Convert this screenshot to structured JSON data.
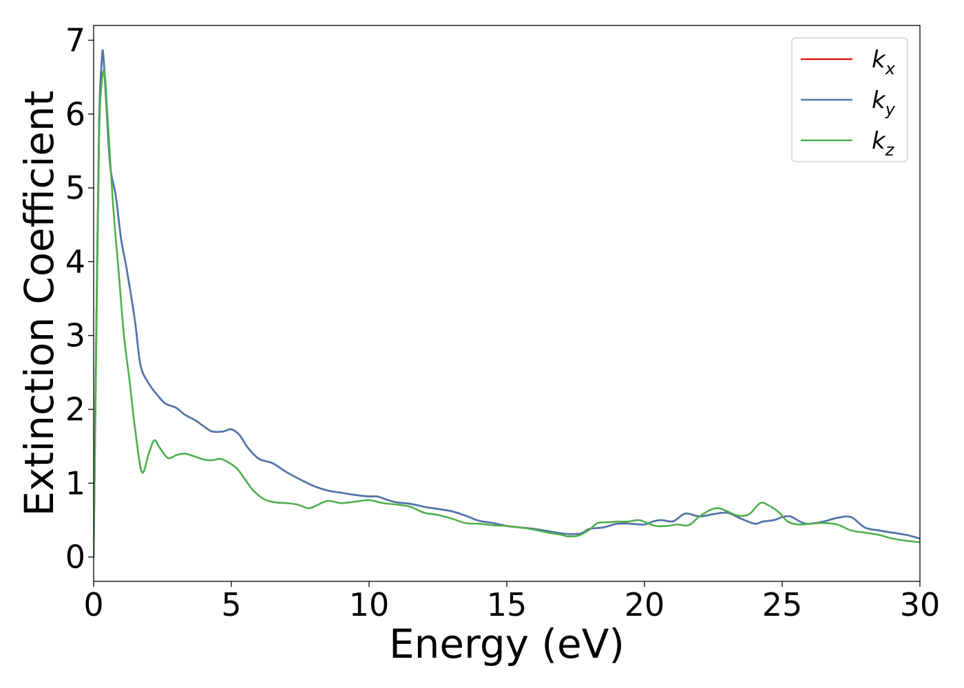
{
  "chart_data": {
    "type": "line",
    "xlabel": "Energy (eV)",
    "ylabel": "Extinction Coefficient",
    "xlim": [
      0,
      30
    ],
    "ylim": [
      -0.33,
      7.2
    ],
    "xticks": [
      "0",
      "5",
      "10",
      "15",
      "20",
      "25",
      "30"
    ],
    "yticks": [
      "0",
      "1",
      "2",
      "3",
      "4",
      "5",
      "6",
      "7"
    ],
    "grid": false,
    "legend": {
      "position": "top-right",
      "entries": [
        {
          "base": "k",
          "sub": "x"
        },
        {
          "base": "k",
          "sub": "y"
        },
        {
          "base": "k",
          "sub": "z"
        }
      ]
    },
    "series": [
      {
        "name": "k_x",
        "color": "#e41a1c",
        "x": [
          0,
          0.1,
          0.2,
          0.3,
          0.35,
          0.45,
          0.6,
          0.8,
          1.0,
          1.2,
          1.5,
          1.7,
          2.0,
          2.3,
          2.6,
          3.0,
          3.3,
          3.7,
          4.0,
          4.3,
          4.7,
          5.0,
          5.3,
          5.6,
          6.0,
          6.5,
          7.0,
          7.5,
          8.0,
          8.5,
          9.0,
          9.5,
          10.0,
          10.3,
          10.7,
          11.0,
          11.5,
          12.0,
          12.5,
          13.0,
          13.5,
          14.0,
          14.5,
          15.0,
          15.5,
          16.0,
          16.5,
          17.0,
          17.3,
          17.7,
          18.0,
          18.5,
          19.0,
          19.5,
          20.0,
          20.3,
          20.6,
          21.0,
          21.2,
          21.5,
          22.0,
          22.5,
          23.0,
          23.5,
          24.0,
          24.3,
          24.7,
          25.0,
          25.3,
          25.7,
          26.0,
          26.5,
          27.0,
          27.5,
          28.0,
          28.5,
          29.0,
          29.5,
          30.0
        ],
        "y": [
          0.0,
          3.2,
          5.9,
          6.75,
          6.8,
          6.2,
          5.3,
          4.9,
          4.3,
          3.9,
          3.2,
          2.6,
          2.35,
          2.2,
          2.08,
          2.02,
          1.93,
          1.85,
          1.77,
          1.7,
          1.7,
          1.73,
          1.65,
          1.48,
          1.33,
          1.27,
          1.15,
          1.05,
          0.96,
          0.9,
          0.87,
          0.84,
          0.82,
          0.82,
          0.77,
          0.74,
          0.72,
          0.68,
          0.65,
          0.62,
          0.56,
          0.49,
          0.46,
          0.42,
          0.4,
          0.38,
          0.35,
          0.32,
          0.31,
          0.32,
          0.38,
          0.4,
          0.45,
          0.45,
          0.44,
          0.48,
          0.5,
          0.48,
          0.52,
          0.59,
          0.55,
          0.58,
          0.6,
          0.52,
          0.45,
          0.48,
          0.5,
          0.54,
          0.55,
          0.47,
          0.45,
          0.48,
          0.53,
          0.54,
          0.4,
          0.36,
          0.33,
          0.3,
          0.25
        ]
      },
      {
        "name": "k_y",
        "color": "#4a78b0",
        "x": [
          0,
          0.1,
          0.2,
          0.3,
          0.35,
          0.45,
          0.6,
          0.8,
          1.0,
          1.2,
          1.5,
          1.7,
          2.0,
          2.3,
          2.6,
          3.0,
          3.3,
          3.7,
          4.0,
          4.3,
          4.7,
          5.0,
          5.3,
          5.6,
          6.0,
          6.5,
          7.0,
          7.5,
          8.0,
          8.5,
          9.0,
          9.5,
          10.0,
          10.3,
          10.7,
          11.0,
          11.5,
          12.0,
          12.5,
          13.0,
          13.5,
          14.0,
          14.5,
          15.0,
          15.5,
          16.0,
          16.5,
          17.0,
          17.3,
          17.7,
          18.0,
          18.5,
          19.0,
          19.5,
          20.0,
          20.3,
          20.6,
          21.0,
          21.2,
          21.5,
          22.0,
          22.5,
          23.0,
          23.5,
          24.0,
          24.3,
          24.7,
          25.0,
          25.3,
          25.7,
          26.0,
          26.5,
          27.0,
          27.5,
          28.0,
          28.5,
          29.0,
          29.5,
          30.0
        ],
        "y": [
          0.0,
          3.2,
          5.9,
          6.75,
          6.8,
          6.2,
          5.3,
          4.9,
          4.3,
          3.9,
          3.2,
          2.6,
          2.35,
          2.2,
          2.08,
          2.02,
          1.93,
          1.85,
          1.77,
          1.7,
          1.7,
          1.73,
          1.65,
          1.48,
          1.33,
          1.27,
          1.15,
          1.05,
          0.96,
          0.9,
          0.87,
          0.84,
          0.82,
          0.82,
          0.77,
          0.74,
          0.72,
          0.68,
          0.65,
          0.62,
          0.56,
          0.49,
          0.46,
          0.42,
          0.4,
          0.38,
          0.35,
          0.32,
          0.31,
          0.32,
          0.38,
          0.4,
          0.45,
          0.45,
          0.44,
          0.48,
          0.5,
          0.48,
          0.52,
          0.59,
          0.55,
          0.58,
          0.6,
          0.52,
          0.45,
          0.48,
          0.5,
          0.54,
          0.55,
          0.47,
          0.45,
          0.48,
          0.53,
          0.54,
          0.4,
          0.36,
          0.33,
          0.3,
          0.25
        ]
      },
      {
        "name": "k_z",
        "color": "#4daf4a",
        "x": [
          0,
          0.1,
          0.2,
          0.3,
          0.4,
          0.5,
          0.7,
          0.9,
          1.1,
          1.3,
          1.5,
          1.75,
          2.0,
          2.2,
          2.4,
          2.7,
          3.0,
          3.3,
          3.6,
          4.0,
          4.3,
          4.6,
          4.9,
          5.2,
          5.5,
          5.8,
          6.2,
          6.6,
          7.0,
          7.4,
          7.8,
          8.1,
          8.5,
          9.0,
          9.5,
          10.0,
          10.5,
          11.0,
          11.5,
          12.0,
          12.5,
          13.0,
          13.5,
          14.0,
          14.5,
          15.0,
          15.5,
          16.0,
          16.5,
          17.0,
          17.2,
          17.6,
          18.0,
          18.3,
          18.7,
          19.0,
          19.4,
          19.8,
          20.1,
          20.4,
          20.8,
          21.2,
          21.6,
          22.0,
          22.4,
          22.7,
          23.0,
          23.4,
          23.8,
          24.2,
          24.5,
          24.9,
          25.2,
          25.6,
          26.0,
          26.5,
          27.0,
          27.5,
          28.0,
          28.5,
          29.0,
          29.5,
          30.0
        ],
        "y": [
          0.0,
          3.0,
          5.7,
          6.45,
          6.55,
          6.0,
          4.8,
          3.9,
          3.0,
          2.4,
          1.75,
          1.15,
          1.4,
          1.58,
          1.48,
          1.34,
          1.38,
          1.4,
          1.37,
          1.32,
          1.31,
          1.33,
          1.28,
          1.2,
          1.05,
          0.9,
          0.78,
          0.74,
          0.73,
          0.71,
          0.66,
          0.7,
          0.76,
          0.73,
          0.75,
          0.77,
          0.73,
          0.71,
          0.68,
          0.6,
          0.57,
          0.52,
          0.46,
          0.45,
          0.43,
          0.42,
          0.4,
          0.37,
          0.33,
          0.3,
          0.28,
          0.29,
          0.37,
          0.46,
          0.47,
          0.48,
          0.48,
          0.5,
          0.46,
          0.42,
          0.42,
          0.44,
          0.43,
          0.55,
          0.64,
          0.66,
          0.62,
          0.56,
          0.58,
          0.73,
          0.7,
          0.6,
          0.48,
          0.44,
          0.45,
          0.46,
          0.44,
          0.36,
          0.33,
          0.3,
          0.25,
          0.22,
          0.2
        ]
      }
    ]
  }
}
